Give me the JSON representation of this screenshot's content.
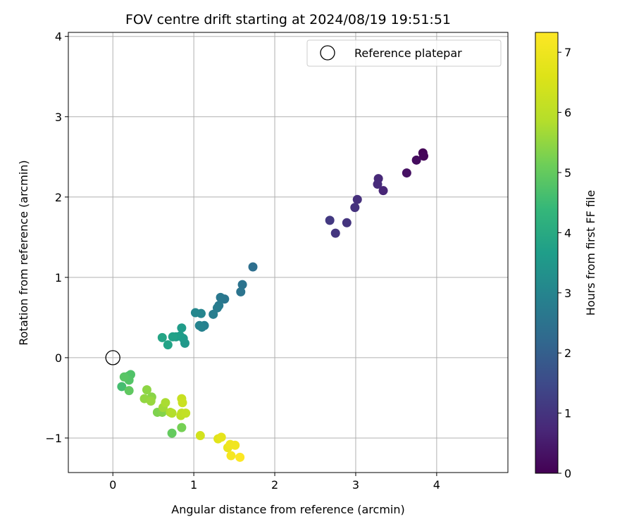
{
  "chart_data": {
    "type": "scatter",
    "title": "FOV centre drift starting at 2024/08/19 19:51:51",
    "xlabel": "Angular distance from reference (arcmin)",
    "ylabel": "Rotation from reference (arcmin)",
    "xlim": [
      -0.55,
      4.88
    ],
    "ylim": [
      -1.43,
      4.05
    ],
    "xticks": [
      0,
      1,
      2,
      3,
      4
    ],
    "yticks": [
      -1,
      0,
      1,
      2,
      3,
      4
    ],
    "xtick_labels": [
      "0",
      "1",
      "2",
      "3",
      "4"
    ],
    "ytick_labels": [
      "−1",
      "0",
      "1",
      "2",
      "3",
      "4"
    ],
    "grid": true,
    "legend": {
      "position": "top-right",
      "entries": [
        "Reference platepar"
      ]
    },
    "reference_point": {
      "x": 0,
      "y": 0
    },
    "colorbar": {
      "label": "Hours from first FF file",
      "colormap": "viridis",
      "range": [
        0,
        7.33
      ],
      "ticks": [
        0,
        1,
        2,
        3,
        4,
        5,
        6,
        7
      ],
      "tick_labels": [
        "0",
        "1",
        "2",
        "3",
        "4",
        "5",
        "6",
        "7"
      ]
    },
    "points": [
      {
        "x": 3.83,
        "y": 2.55,
        "c": 0.05
      },
      {
        "x": 3.84,
        "y": 2.51,
        "c": 0.1
      },
      {
        "x": 3.75,
        "y": 2.46,
        "c": 0.2
      },
      {
        "x": 3.63,
        "y": 2.3,
        "c": 0.3
      },
      {
        "x": 3.34,
        "y": 2.08,
        "c": 0.7
      },
      {
        "x": 3.28,
        "y": 2.23,
        "c": 0.75
      },
      {
        "x": 3.27,
        "y": 2.16,
        "c": 0.8
      },
      {
        "x": 3.02,
        "y": 1.97,
        "c": 0.9
      },
      {
        "x": 2.99,
        "y": 1.87,
        "c": 0.95
      },
      {
        "x": 2.89,
        "y": 1.68,
        "c": 1.0
      },
      {
        "x": 2.75,
        "y": 1.55,
        "c": 1.05
      },
      {
        "x": 2.68,
        "y": 1.71,
        "c": 1.1
      },
      {
        "x": 1.73,
        "y": 1.13,
        "c": 2.4
      },
      {
        "x": 1.6,
        "y": 0.91,
        "c": 2.5
      },
      {
        "x": 1.58,
        "y": 0.82,
        "c": 2.55
      },
      {
        "x": 1.38,
        "y": 0.73,
        "c": 2.6
      },
      {
        "x": 1.33,
        "y": 0.75,
        "c": 2.65
      },
      {
        "x": 1.31,
        "y": 0.65,
        "c": 2.7
      },
      {
        "x": 1.29,
        "y": 0.62,
        "c": 2.75
      },
      {
        "x": 1.24,
        "y": 0.54,
        "c": 2.8
      },
      {
        "x": 1.13,
        "y": 0.4,
        "c": 2.85
      },
      {
        "x": 1.1,
        "y": 0.38,
        "c": 2.9
      },
      {
        "x": 1.07,
        "y": 0.4,
        "c": 2.95
      },
      {
        "x": 1.09,
        "y": 0.55,
        "c": 3.0
      },
      {
        "x": 1.02,
        "y": 0.56,
        "c": 3.05
      },
      {
        "x": 0.89,
        "y": 0.18,
        "c": 3.5
      },
      {
        "x": 0.87,
        "y": 0.24,
        "c": 3.55
      },
      {
        "x": 0.85,
        "y": 0.37,
        "c": 3.6
      },
      {
        "x": 0.83,
        "y": 0.27,
        "c": 3.65
      },
      {
        "x": 0.78,
        "y": 0.26,
        "c": 3.7
      },
      {
        "x": 0.74,
        "y": 0.26,
        "c": 3.75
      },
      {
        "x": 0.68,
        "y": 0.16,
        "c": 3.8
      },
      {
        "x": 0.61,
        "y": 0.25,
        "c": 3.85
      },
      {
        "x": 0.11,
        "y": -0.36,
        "c": 4.6
      },
      {
        "x": 0.19,
        "y": -0.23,
        "c": 4.7
      },
      {
        "x": 0.22,
        "y": -0.21,
        "c": 4.75
      },
      {
        "x": 0.2,
        "y": -0.28,
        "c": 4.8
      },
      {
        "x": 0.14,
        "y": -0.24,
        "c": 4.85
      },
      {
        "x": 0.2,
        "y": -0.41,
        "c": 4.95
      },
      {
        "x": 0.73,
        "y": -0.94,
        "c": 5.0
      },
      {
        "x": 0.85,
        "y": -0.87,
        "c": 5.2
      },
      {
        "x": 0.55,
        "y": -0.68,
        "c": 5.3
      },
      {
        "x": 0.61,
        "y": -0.68,
        "c": 5.35
      },
      {
        "x": 0.48,
        "y": -0.49,
        "c": 5.4
      },
      {
        "x": 0.42,
        "y": -0.4,
        "c": 5.45
      },
      {
        "x": 0.39,
        "y": -0.51,
        "c": 5.5
      },
      {
        "x": 0.47,
        "y": -0.54,
        "c": 5.55
      },
      {
        "x": 0.62,
        "y": -0.62,
        "c": 5.65
      },
      {
        "x": 0.65,
        "y": -0.56,
        "c": 5.75
      },
      {
        "x": 0.71,
        "y": -0.68,
        "c": 5.8
      },
      {
        "x": 0.73,
        "y": -0.69,
        "c": 5.85
      },
      {
        "x": 0.84,
        "y": -0.72,
        "c": 6.0
      },
      {
        "x": 0.85,
        "y": -0.69,
        "c": 6.05
      },
      {
        "x": 0.9,
        "y": -0.69,
        "c": 6.1
      },
      {
        "x": 0.85,
        "y": -0.51,
        "c": 6.2
      },
      {
        "x": 0.86,
        "y": -0.56,
        "c": 6.25
      },
      {
        "x": 1.08,
        "y": -0.97,
        "c": 6.4
      },
      {
        "x": 1.3,
        "y": -1.01,
        "c": 6.7
      },
      {
        "x": 1.34,
        "y": -0.99,
        "c": 6.8
      },
      {
        "x": 1.42,
        "y": -1.12,
        "c": 6.9
      },
      {
        "x": 1.45,
        "y": -1.08,
        "c": 7.0
      },
      {
        "x": 1.51,
        "y": -1.09,
        "c": 7.05
      },
      {
        "x": 1.46,
        "y": -1.22,
        "c": 7.15
      },
      {
        "x": 1.57,
        "y": -1.24,
        "c": 7.3
      }
    ]
  }
}
